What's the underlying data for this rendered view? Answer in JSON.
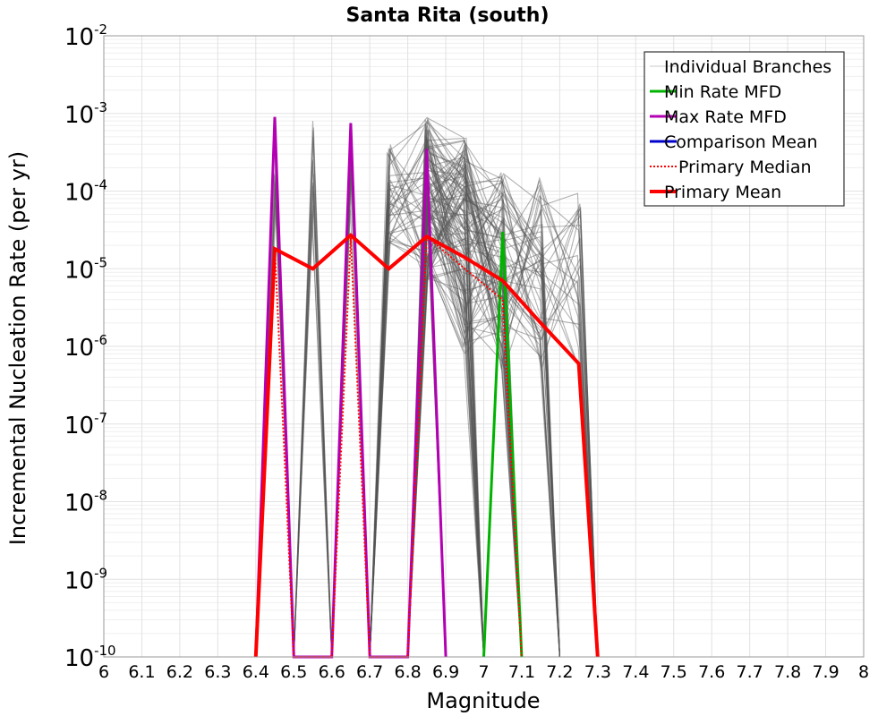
{
  "chart_data": {
    "type": "line",
    "title": "Santa Rita (south)",
    "xlabel": "Magnitude",
    "ylabel": "Incremental Nucleation Rate (per yr)",
    "xlim": [
      6,
      8
    ],
    "ylim_log10": [
      -10,
      -2
    ],
    "yscale": "log",
    "grid": true,
    "legend_position": "top-right",
    "x_ticks": [
      "6",
      "6.1",
      "6.2",
      "6.3",
      "6.4",
      "6.5",
      "6.6",
      "6.7",
      "6.8",
      "6.9",
      "7",
      "7.1",
      "7.2",
      "7.3",
      "7.4",
      "7.5",
      "7.6",
      "7.7",
      "7.8",
      "7.9",
      "8"
    ],
    "y_ticks": [
      {
        "base": "10",
        "exp": "-10"
      },
      {
        "base": "10",
        "exp": "-9"
      },
      {
        "base": "10",
        "exp": "-8"
      },
      {
        "base": "10",
        "exp": "-7"
      },
      {
        "base": "10",
        "exp": "-6"
      },
      {
        "base": "10",
        "exp": "-5"
      },
      {
        "base": "10",
        "exp": "-4"
      },
      {
        "base": "10",
        "exp": "-3"
      },
      {
        "base": "10",
        "exp": "-2"
      }
    ],
    "legend": [
      {
        "label": "Individual Branches",
        "color": "#c8c8c8",
        "style": "thin"
      },
      {
        "label": "Min Rate MFD",
        "color": "#00b300",
        "style": "solid"
      },
      {
        "label": "Max Rate MFD",
        "color": "#b300b3",
        "style": "solid"
      },
      {
        "label": "Comparison Mean",
        "color": "#0000cc",
        "style": "solid"
      },
      {
        "label": "Primary Median",
        "color": "#ff0000",
        "style": "dotted"
      },
      {
        "label": "Primary Mean",
        "color": "#ff0000",
        "style": "thick"
      }
    ],
    "series": [
      {
        "name": "Primary Mean",
        "color": "#ff0000",
        "x": [
          6.4,
          6.45,
          6.55,
          6.65,
          6.75,
          6.85,
          6.95,
          7.05,
          7.15,
          7.25,
          7.3
        ],
        "y": [
          1e-10,
          1.8e-05,
          1e-05,
          2.7e-05,
          1e-05,
          2.6e-05,
          1.4e-05,
          7e-06,
          2e-06,
          6e-07,
          1e-10
        ]
      },
      {
        "name": "Primary Median",
        "color": "#ff0000",
        "x": [
          6.4,
          6.45,
          6.5,
          6.6,
          6.65,
          6.7,
          6.8,
          6.85,
          6.95,
          7.05,
          7.1
        ],
        "y": [
          1e-10,
          1.9e-05,
          1e-10,
          1e-10,
          2.5e-05,
          1e-10,
          1e-10,
          2.6e-05,
          1e-05,
          4e-06,
          1e-10
        ]
      },
      {
        "name": "Min Rate MFD",
        "color": "#00b300",
        "x": [
          7.0,
          7.05,
          7.1
        ],
        "y": [
          1e-10,
          3e-05,
          1e-10
        ]
      },
      {
        "name": "Max Rate MFD",
        "color": "#b300b3",
        "x": [
          6.4,
          6.45,
          6.5,
          6.6,
          6.65,
          6.7,
          6.8,
          6.85,
          6.9
        ],
        "y": [
          1e-10,
          0.0009,
          1e-10,
          1e-10,
          0.00075,
          1e-10,
          1e-10,
          0.00035,
          1e-10
        ]
      }
    ],
    "branch_summary": {
      "name": "Individual Branches",
      "color": "#555555",
      "spikes": [
        {
          "x": 6.45,
          "left": 6.4,
          "right": 6.5,
          "peak_log10": [
            -4.3,
            -3.02
          ]
        },
        {
          "x": 6.55,
          "left": 6.5,
          "right": 6.6,
          "peak_log10": [
            -4.3,
            -3.08
          ]
        },
        {
          "x": 6.65,
          "left": 6.6,
          "right": 6.7,
          "peak_log10": [
            -4.3,
            -3.1
          ]
        },
        {
          "x": 6.85,
          "left": 6.8,
          "right": 6.9,
          "peak_log10": [
            -4.5,
            -3.0
          ]
        }
      ],
      "plateau_bins": [
        6.75,
        6.85,
        6.95,
        7.05,
        7.15,
        7.25
      ],
      "plateau_log10_ranges": [
        [
          -4.7,
          -3.4
        ],
        [
          -5.2,
          -3.05
        ],
        [
          -6.1,
          -3.3
        ],
        [
          -6.3,
          -3.7
        ],
        [
          -6.4,
          -3.8
        ],
        [
          -6.5,
          -4.0
        ]
      ],
      "ends": [
        7.0,
        7.1,
        7.2,
        7.3
      ]
    }
  }
}
